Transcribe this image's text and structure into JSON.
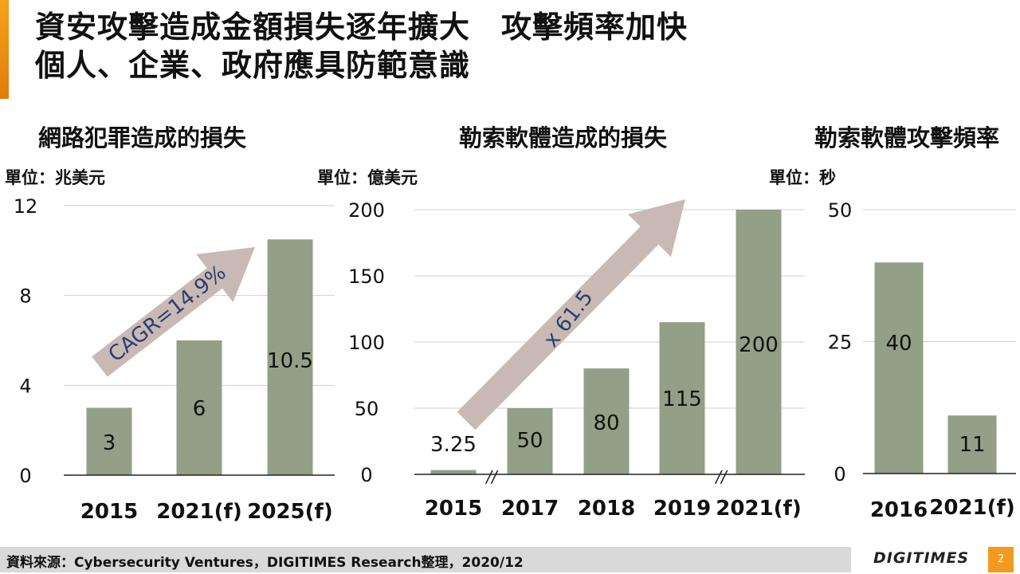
{
  "title": "資安攻擊造成金額損失逐年擴大　攻擊頻率加快\n個人、企業、政府應具防範意識",
  "footer": {
    "source": "資料來源：Cybersecurity Ventures，DIGITIMES Research整理，2020/12",
    "brand": "DIGITIMES",
    "page": "2"
  },
  "colors": {
    "bar": "#939f86",
    "arrow": "#c9b9b4",
    "accent": "#f29a1f",
    "arrow_text": "#2b3f6e"
  },
  "chart_data": [
    {
      "type": "bar",
      "title": "網路犯罪造成的損失",
      "unit": "單位：兆美元",
      "categories": [
        "2015",
        "2021(f)",
        "2025(f)"
      ],
      "values": [
        3,
        6,
        10.5
      ],
      "value_labels": [
        "3",
        "6",
        "10.5"
      ],
      "ylim": [
        0,
        12
      ],
      "yticks": [
        0,
        4,
        8,
        12
      ],
      "annotation": "CAGR=14.9%",
      "grid": true
    },
    {
      "type": "bar",
      "title": "勒索軟體造成的損失",
      "unit": "單位：億美元",
      "categories": [
        "2015",
        "2017",
        "2018",
        "2019",
        "2021(f)"
      ],
      "values": [
        3.25,
        50,
        80,
        115,
        200
      ],
      "value_labels": [
        "3.25",
        "50",
        "80",
        "115",
        "200"
      ],
      "ylim": [
        0,
        200
      ],
      "yticks": [
        0,
        50,
        100,
        150,
        200
      ],
      "annotation": "x 61.5",
      "axis_break_mark": "//",
      "grid": true
    },
    {
      "type": "bar",
      "title": "勒索軟體攻擊頻率",
      "unit": "單位：秒",
      "categories": [
        "2016",
        "2021(f)"
      ],
      "values": [
        40,
        11
      ],
      "value_labels": [
        "40",
        "11"
      ],
      "ylim": [
        0,
        50
      ],
      "yticks": [
        0,
        25,
        50
      ],
      "grid": true
    }
  ]
}
